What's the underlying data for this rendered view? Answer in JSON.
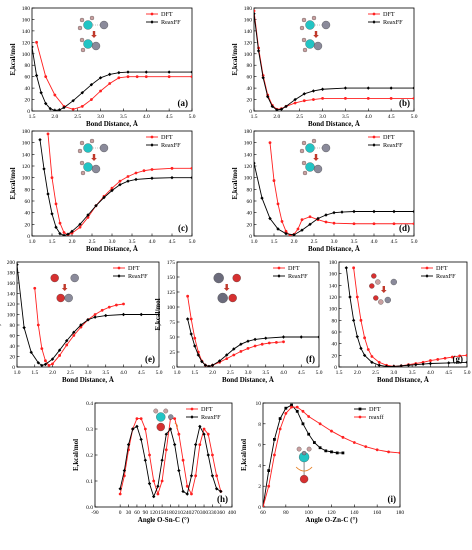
{
  "colors": {
    "dft": "#ff2020",
    "reaxff": "#000000"
  },
  "chart_data": [
    {
      "id": "a",
      "type": "line",
      "panel_label": "(a)",
      "xlabel": "Bond Distance, Å",
      "ylabel": "E,kcal/mol",
      "xlim": [
        1.5,
        5.0
      ],
      "ylim": [
        0,
        180
      ],
      "xticks": [
        "1.5",
        "2.0",
        "2.5",
        "3.0",
        "3.5",
        "4.0",
        "4.5",
        "5.0"
      ],
      "yticks": [
        "0",
        "20",
        "40",
        "60",
        "80",
        "100",
        "120",
        "140",
        "160",
        "180"
      ],
      "legend_position": "top-right",
      "series": [
        {
          "name": "DFT",
          "color": "#ff2020",
          "x": [
            1.6,
            1.8,
            2.0,
            2.2,
            2.4,
            2.6,
            2.8,
            3.0,
            3.2,
            3.4,
            3.6,
            3.8,
            4.0,
            4.5,
            5.0
          ],
          "y": [
            120,
            60,
            28,
            8,
            3,
            8,
            20,
            35,
            48,
            58,
            60,
            60,
            60,
            60,
            60
          ]
        },
        {
          "name": "ReaxFF",
          "color": "#000000",
          "x": [
            1.5,
            1.6,
            1.7,
            1.8,
            1.9,
            2.0,
            2.1,
            2.2,
            2.4,
            2.6,
            2.8,
            3.0,
            3.2,
            3.4,
            3.6,
            4.0,
            4.5,
            5.0
          ],
          "y": [
            112,
            62,
            32,
            13,
            4,
            1,
            2,
            6,
            18,
            32,
            46,
            58,
            64,
            67,
            68,
            68,
            68,
            68
          ]
        }
      ]
    },
    {
      "id": "b",
      "type": "line",
      "panel_label": "(b)",
      "xlabel": "Bond Distance, Å",
      "ylabel": "E,kcal/mol",
      "xlim": [
        1.5,
        5.0
      ],
      "ylim": [
        0,
        180
      ],
      "xticks": [
        "1.5",
        "2.0",
        "2.5",
        "3.0",
        "3.5",
        "4.0",
        "4.5",
        "5.0"
      ],
      "yticks": [
        "0",
        "20",
        "40",
        "60",
        "80",
        "100",
        "120",
        "140",
        "160",
        "180"
      ],
      "legend_position": "top-right",
      "series": [
        {
          "name": "DFT",
          "color": "#ff2020",
          "x": [
            1.5,
            1.6,
            1.7,
            1.8,
            1.9,
            2.0,
            2.1,
            2.2,
            2.4,
            2.6,
            2.8,
            3.0,
            3.5,
            4.0,
            4.5,
            5.0
          ],
          "y": [
            175,
            110,
            62,
            28,
            10,
            3,
            4,
            8,
            14,
            18,
            20,
            22,
            22,
            22,
            22,
            22
          ]
        },
        {
          "name": "ReaxFF",
          "color": "#000000",
          "x": [
            1.5,
            1.6,
            1.7,
            1.8,
            1.9,
            2.0,
            2.1,
            2.2,
            2.4,
            2.6,
            2.8,
            3.0,
            3.5,
            4.0,
            4.5,
            5.0
          ],
          "y": [
            170,
            105,
            58,
            25,
            8,
            2,
            3,
            8,
            20,
            30,
            35,
            38,
            40,
            40,
            40,
            40
          ]
        }
      ]
    },
    {
      "id": "c",
      "type": "line",
      "panel_label": "(c)",
      "xlabel": "Bond Distance, Å",
      "ylabel": "E,kcal/mol",
      "xlim": [
        1.0,
        5.0
      ],
      "ylim": [
        0,
        180
      ],
      "xticks": [
        "1.0",
        "1.5",
        "2.0",
        "2.5",
        "3.0",
        "3.5",
        "4.0",
        "4.5",
        "5.0"
      ],
      "yticks": [
        "0",
        "20",
        "40",
        "60",
        "80",
        "100",
        "120",
        "140",
        "160",
        "180"
      ],
      "legend_position": "top-right",
      "series": [
        {
          "name": "DFT",
          "color": "#ff2020",
          "x": [
            1.4,
            1.5,
            1.6,
            1.7,
            1.8,
            1.9,
            2.0,
            2.2,
            2.4,
            2.6,
            2.8,
            3.0,
            3.2,
            3.4,
            3.6,
            3.8,
            4.0,
            4.5,
            5.0
          ],
          "y": [
            175,
            100,
            55,
            22,
            6,
            2,
            5,
            15,
            32,
            52,
            68,
            82,
            94,
            102,
            108,
            112,
            114,
            116,
            116
          ]
        },
        {
          "name": "ReaxFF",
          "color": "#000000",
          "x": [
            1.2,
            1.3,
            1.4,
            1.5,
            1.6,
            1.7,
            1.8,
            1.9,
            2.0,
            2.2,
            2.4,
            2.6,
            2.8,
            3.0,
            3.2,
            3.4,
            3.6,
            4.0,
            4.5,
            5.0
          ],
          "y": [
            165,
            115,
            72,
            38,
            15,
            4,
            1,
            3,
            8,
            20,
            36,
            52,
            66,
            78,
            88,
            94,
            97,
            99,
            100,
            100
          ]
        }
      ]
    },
    {
      "id": "d",
      "type": "line",
      "panel_label": "(d)",
      "xlabel": "Bond Distance, Å",
      "ylabel": "E,kcal/mol",
      "xlim": [
        1.0,
        5.0
      ],
      "ylim": [
        0,
        180
      ],
      "xticks": [
        "1.0",
        "1.5",
        "2.0",
        "2.5",
        "3.0",
        "3.5",
        "4.0",
        "4.5",
        "5.0"
      ],
      "yticks": [
        "0",
        "20",
        "40",
        "60",
        "80",
        "100",
        "120",
        "140",
        "160",
        "180"
      ],
      "legend_position": "top-right",
      "series": [
        {
          "name": "DFT",
          "color": "#ff2020",
          "x": [
            1.4,
            1.5,
            1.6,
            1.7,
            1.8,
            1.9,
            2.0,
            2.1,
            2.2,
            2.4,
            2.6,
            2.8,
            3.0,
            3.5,
            4.0,
            4.5,
            5.0
          ],
          "y": [
            160,
            95,
            55,
            25,
            8,
            1,
            3,
            12,
            28,
            33,
            28,
            24,
            22,
            21,
            21,
            21,
            21
          ]
        },
        {
          "name": "ReaxFF",
          "color": "#000000",
          "x": [
            1.0,
            1.2,
            1.4,
            1.6,
            1.8,
            2.0,
            2.2,
            2.4,
            2.6,
            2.8,
            3.0,
            3.2,
            3.5,
            4.0,
            4.5,
            5.0
          ],
          "y": [
            125,
            65,
            30,
            12,
            4,
            2,
            10,
            20,
            30,
            36,
            40,
            41,
            42,
            42,
            42,
            42
          ]
        }
      ]
    },
    {
      "id": "e",
      "type": "line",
      "panel_label": "(e)",
      "xlabel": "Bond Distance, Å",
      "ylabel": "E,kcal/mol",
      "xlim": [
        1.0,
        5.0
      ],
      "ylim": [
        0,
        200
      ],
      "xticks": [
        "1.0",
        "1.5",
        "2.0",
        "2.5",
        "3.0",
        "3.5",
        "4.0",
        "4.5",
        "5.0"
      ],
      "yticks": [
        "0",
        "20",
        "40",
        "60",
        "80",
        "100",
        "120",
        "140",
        "160",
        "180",
        "200"
      ],
      "legend_position": "top-right",
      "series": [
        {
          "name": "DFT",
          "color": "#ff2020",
          "x": [
            1.5,
            1.6,
            1.7,
            1.8,
            1.9,
            2.0,
            2.2,
            2.4,
            2.6,
            2.8,
            3.0,
            3.2,
            3.4,
            3.6,
            3.8,
            4.0
          ],
          "y": [
            150,
            80,
            35,
            12,
            3,
            6,
            22,
            42,
            60,
            76,
            90,
            100,
            108,
            114,
            118,
            120
          ]
        },
        {
          "name": "ReaxFF",
          "color": "#000000",
          "x": [
            1.0,
            1.2,
            1.4,
            1.6,
            1.7,
            1.8,
            2.0,
            2.2,
            2.4,
            2.6,
            2.8,
            3.0,
            3.2,
            3.5,
            4.0,
            4.5,
            5.0
          ],
          "y": [
            195,
            75,
            28,
            8,
            3,
            5,
            15,
            32,
            50,
            66,
            80,
            90,
            95,
            98,
            100,
            100,
            100
          ]
        }
      ]
    },
    {
      "id": "f",
      "type": "line",
      "panel_label": "(f)",
      "xlabel": "Bond Distance, Å",
      "ylabel": "E,kcal/mol",
      "xlim": [
        1.0,
        5.0
      ],
      "ylim": [
        0,
        175
      ],
      "xticks": [
        "1.0",
        "1.5",
        "2.0",
        "2.5",
        "3.0",
        "3.5",
        "4.0",
        "4.5",
        "5.0"
      ],
      "yticks": [
        "0",
        "25",
        "50",
        "75",
        "100",
        "125",
        "150",
        "175"
      ],
      "legend_position": "top-right",
      "series": [
        {
          "name": "DFT",
          "color": "#ff2020",
          "x": [
            1.3,
            1.4,
            1.5,
            1.6,
            1.7,
            1.8,
            1.9,
            2.0,
            2.2,
            2.4,
            2.6,
            2.8,
            3.0,
            3.2,
            3.4,
            3.6,
            3.8,
            4.0
          ],
          "y": [
            118,
            80,
            48,
            25,
            10,
            3,
            1,
            3,
            8,
            14,
            20,
            26,
            31,
            35,
            38,
            40,
            41,
            42
          ]
        },
        {
          "name": "ReaxFF",
          "color": "#000000",
          "x": [
            1.3,
            1.4,
            1.5,
            1.6,
            1.7,
            1.8,
            1.9,
            2.0,
            2.2,
            2.4,
            2.6,
            2.8,
            3.0,
            3.2,
            3.5,
            4.0,
            4.5,
            5.0
          ],
          "y": [
            80,
            55,
            35,
            20,
            9,
            3,
            1,
            3,
            10,
            20,
            30,
            38,
            43,
            46,
            48,
            50,
            50,
            50
          ]
        }
      ]
    },
    {
      "id": "g",
      "type": "line",
      "panel_label": "(g)",
      "xlabel": "Bond Distance, Å",
      "ylabel": "",
      "xlim": [
        1.5,
        5.0
      ],
      "ylim": [
        0,
        180
      ],
      "xticks": [
        "1.5",
        "2.0",
        "2.5",
        "3.0",
        "3.5",
        "4.0",
        "4.5",
        "5.0"
      ],
      "yticks": [
        "0",
        "20",
        "40",
        "60",
        "80",
        "100",
        "120",
        "140",
        "160",
        "180"
      ],
      "legend_position": "top-right",
      "series": [
        {
          "name": "DFT",
          "color": "#ff2020",
          "x": [
            1.9,
            2.0,
            2.1,
            2.2,
            2.3,
            2.4,
            2.6,
            2.8,
            3.0,
            3.2,
            3.4,
            3.6,
            3.8,
            4.0,
            4.2,
            4.4,
            4.6,
            4.8,
            5.0
          ],
          "y": [
            170,
            120,
            80,
            50,
            30,
            18,
            8,
            3,
            1,
            2,
            4,
            6,
            8,
            11,
            13,
            15,
            17,
            19,
            20
          ]
        },
        {
          "name": "ReaxFF",
          "color": "#000000",
          "x": [
            1.7,
            1.8,
            1.9,
            2.0,
            2.1,
            2.2,
            2.4,
            2.6,
            2.8,
            3.0,
            3.2,
            3.4,
            3.6,
            3.8,
            4.0,
            4.5,
            5.0
          ],
          "y": [
            170,
            120,
            80,
            52,
            32,
            20,
            8,
            3,
            1,
            1,
            2,
            3,
            4,
            5,
            6,
            7,
            8
          ]
        }
      ]
    },
    {
      "id": "h",
      "type": "line",
      "panel_label": "(h)",
      "xlabel": "Angle O-Sn-C (°)",
      "ylabel": "E,kcal/mol",
      "xlim": [
        -90,
        400
      ],
      "ylim": [
        0,
        0.4
      ],
      "xticks": [
        "-90",
        "0",
        "30",
        "60",
        "90",
        "120",
        "150",
        "180",
        "210",
        "240",
        "270",
        "300",
        "330",
        "360",
        "400"
      ],
      "yticks": [
        "0.0",
        "0.1",
        "0.2",
        "0.3",
        "0.4"
      ],
      "legend_position": "top-right",
      "series": [
        {
          "name": "DFT",
          "color": "#ff2020",
          "x": [
            0,
            15,
            30,
            45,
            60,
            75,
            90,
            105,
            120,
            135,
            150,
            165,
            180,
            195,
            210,
            225,
            240,
            255,
            270,
            285,
            300,
            315,
            330,
            345,
            360
          ],
          "y": [
            0.05,
            0.12,
            0.22,
            0.3,
            0.34,
            0.34,
            0.3,
            0.2,
            0.1,
            0.05,
            0.1,
            0.22,
            0.34,
            0.34,
            0.28,
            0.18,
            0.08,
            0.05,
            0.12,
            0.24,
            0.3,
            0.28,
            0.2,
            0.12,
            0.06
          ]
        },
        {
          "name": "ReaxFF",
          "color": "#000000",
          "x": [
            0,
            15,
            30,
            45,
            60,
            75,
            90,
            105,
            120,
            135,
            150,
            165,
            180,
            195,
            210,
            225,
            240,
            255,
            270,
            285,
            300,
            315,
            330,
            345,
            360
          ],
          "y": [
            0.07,
            0.14,
            0.24,
            0.3,
            0.31,
            0.26,
            0.18,
            0.09,
            0.04,
            0.08,
            0.18,
            0.28,
            0.3,
            0.24,
            0.14,
            0.06,
            0.05,
            0.12,
            0.24,
            0.31,
            0.28,
            0.2,
            0.12,
            0.07,
            0.06
          ]
        }
      ]
    },
    {
      "id": "i",
      "type": "line",
      "panel_label": "(i)",
      "xlabel": "Angle O-Zn-C (°)",
      "ylabel": "E,kcal/mol",
      "xlim": [
        60,
        180
      ],
      "ylim": [
        0,
        10
      ],
      "xticks": [
        "60",
        "80",
        "100",
        "120",
        "140",
        "160",
        "180"
      ],
      "yticks": [
        "0",
        "2",
        "4",
        "6",
        "8",
        "10"
      ],
      "legend_position": "top-right",
      "series": [
        {
          "name": "DFT",
          "color": "#000000",
          "x": [
            60,
            65,
            70,
            75,
            80,
            85,
            90,
            95,
            100,
            105,
            110,
            115,
            120,
            125,
            130
          ],
          "y": [
            0,
            3.5,
            6.5,
            8.5,
            9.5,
            9.8,
            9.2,
            8,
            7,
            6.2,
            5.7,
            5.4,
            5.3,
            5.2,
            5.2
          ]
        },
        {
          "name": "reaxff",
          "color": "#ff2020",
          "x": [
            60,
            65,
            70,
            75,
            80,
            85,
            90,
            95,
            100,
            110,
            120,
            130,
            140,
            150,
            160,
            170,
            180
          ],
          "y": [
            0,
            2,
            5,
            7.5,
            9,
            9.6,
            9.6,
            9.2,
            8.7,
            8,
            7.3,
            6.7,
            6.2,
            5.8,
            5.5,
            5.3,
            5.2
          ]
        }
      ]
    }
  ]
}
